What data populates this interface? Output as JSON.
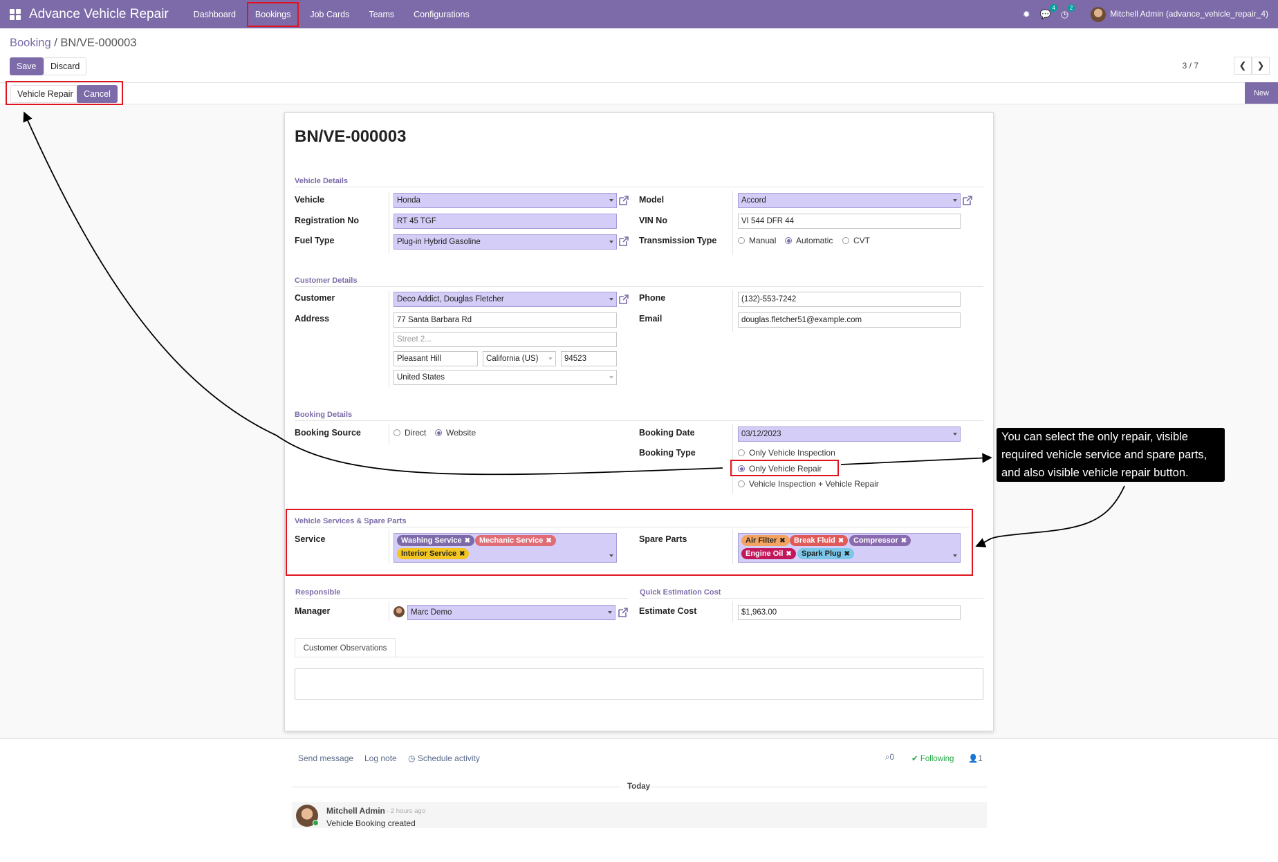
{
  "nav": {
    "brand": "Advance Vehicle Repair",
    "menu": [
      "Dashboard",
      "Bookings",
      "Job Cards",
      "Teams",
      "Configurations"
    ],
    "chat_badge": "4",
    "activity_badge": "2",
    "user": "Mitchell Admin (advance_vehicle_repair_4)"
  },
  "breadcrumb": {
    "parent": "Booking",
    "separator": "/",
    "current": "BN/VE-000003"
  },
  "buttons": {
    "save": "Save",
    "discard": "Discard",
    "vehicle_repair": "Vehicle Repair",
    "cancel": "Cancel",
    "new": "New"
  },
  "pager": {
    "text": "3 / 7"
  },
  "record": {
    "title": "BN/VE-000003",
    "vehicle_details": {
      "section": "Vehicle Details",
      "vehicle_label": "Vehicle",
      "vehicle": "Honda",
      "registration_label": "Registration No",
      "registration": "RT 45 TGF",
      "fuel_label": "Fuel Type",
      "fuel": "Plug-in Hybrid Gasoline",
      "model_label": "Model",
      "model": "Accord",
      "vin_label": "VIN No",
      "vin": "VI 544 DFR 44",
      "transmission_label": "Transmission Type",
      "transmission_options": [
        "Manual",
        "Automatic",
        "CVT"
      ],
      "transmission_selected": "Automatic"
    },
    "customer_details": {
      "section": "Customer Details",
      "customer_label": "Customer",
      "customer": "Deco Addict, Douglas Fletcher",
      "address_label": "Address",
      "street": "77 Santa Barbara Rd",
      "street2_placeholder": "Street 2...",
      "city": "Pleasant Hill",
      "state": "California (US)",
      "zip": "94523",
      "country": "United States",
      "phone_label": "Phone",
      "phone": "(132)-553-7242",
      "email_label": "Email",
      "email": "douglas.fletcher51@example.com"
    },
    "booking_details": {
      "section": "Booking Details",
      "source_label": "Booking Source",
      "source_options": [
        "Direct",
        "Website"
      ],
      "source_selected": "Website",
      "date_label": "Booking Date",
      "date": "03/12/2023",
      "type_label": "Booking Type",
      "type_options": [
        "Only Vehicle Inspection",
        "Only Vehicle Repair",
        "Vehicle Inspection + Vehicle Repair"
      ],
      "type_selected": "Only Vehicle Repair"
    },
    "services": {
      "section": "Vehicle Services & Spare Parts",
      "service_label": "Service",
      "service_tags": [
        {
          "label": "Washing Service",
          "color": "#7c6ba8"
        },
        {
          "label": "Mechanic Service",
          "color": "#e06c75"
        },
        {
          "label": "Interior Service",
          "color": "#f3c520"
        }
      ],
      "spare_label": "Spare Parts",
      "spare_tags": [
        {
          "label": "Air Filter",
          "color": "#f4a460"
        },
        {
          "label": "Break Fluid",
          "color": "#e05a5a"
        },
        {
          "label": "Compressor",
          "color": "#8a6bb0"
        },
        {
          "label": "Engine Oil",
          "color": "#c2185b"
        },
        {
          "label": "Spark Plug",
          "color": "#7cc6e8"
        }
      ]
    },
    "responsible": {
      "section": "Responsible",
      "manager_label": "Manager",
      "manager": "Marc Demo"
    },
    "estimation": {
      "section": "Quick Estimation Cost",
      "cost_label": "Estimate Cost",
      "cost": "$1,963.00"
    },
    "tab": "Customer Observations"
  },
  "chatter": {
    "send_message": "Send message",
    "log_note": "Log note",
    "schedule": "Schedule activity",
    "attachments": "0",
    "following": "Following",
    "followers": "1",
    "today": "Today",
    "author": "Mitchell Admin",
    "time": "- 2 hours ago",
    "body": "Vehicle Booking created"
  },
  "annotation": {
    "text": "You can select the only  repair, visible required vehicle service and spare parts, and also visible vehicle repair button."
  }
}
